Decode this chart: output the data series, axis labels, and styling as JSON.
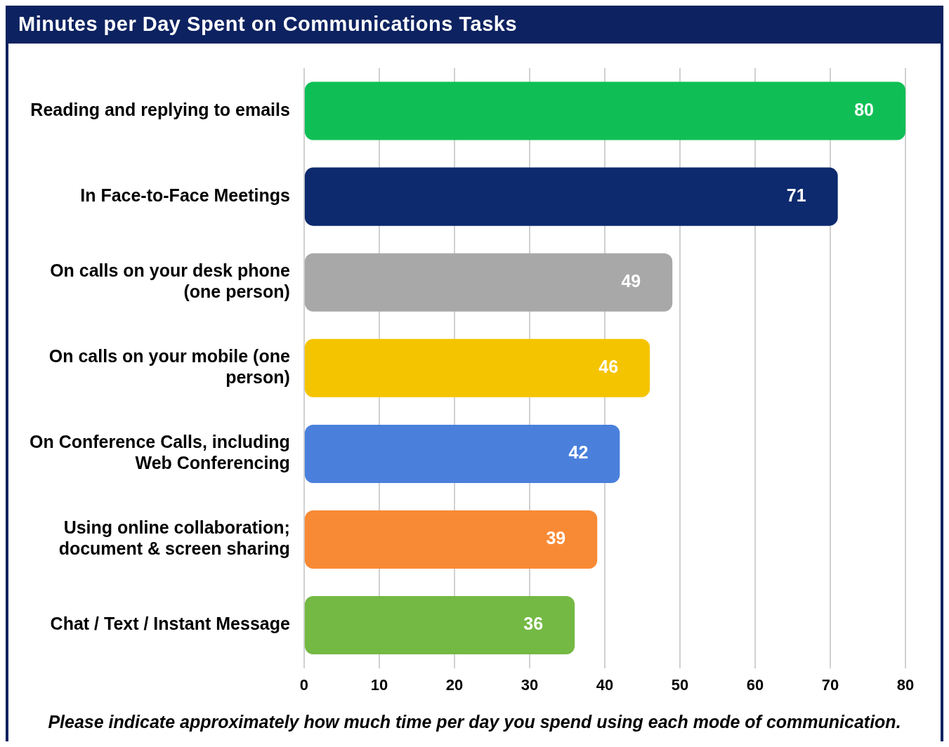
{
  "chart_data": {
    "type": "bar",
    "orientation": "horizontal",
    "title": "Minutes per Day Spent on Communications Tasks",
    "categories": [
      "Reading and replying to emails",
      "In Face-to-Face Meetings",
      "On calls on your desk phone (one person)",
      "On calls on your mobile (one person)",
      "On Conference Calls, including Web Conferencing",
      "Using online collaboration; document & screen sharing",
      "Chat / Text / Instant Message"
    ],
    "values": [
      80,
      71,
      49,
      46,
      42,
      39,
      36
    ],
    "colors": [
      "#0fbf55",
      "#0d2a6e",
      "#a8a8a8",
      "#f5c400",
      "#4a80dc",
      "#f98a35",
      "#74b944"
    ],
    "xlim": [
      0,
      80
    ],
    "xticks": [
      0,
      10,
      20,
      30,
      40,
      50,
      60,
      70,
      80
    ],
    "grid": "x",
    "data_labels": true,
    "annotations": [
      "Please indicate approximately how much time per day you spend using each mode of communication."
    ]
  }
}
